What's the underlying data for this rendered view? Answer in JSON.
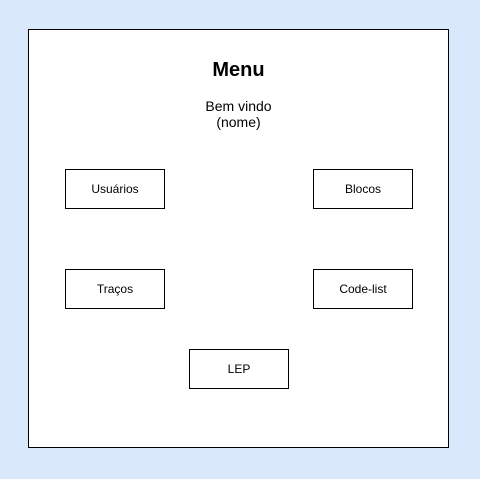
{
  "menu": {
    "title": "Menu",
    "welcome_line1": "Bem vindo",
    "welcome_line2": "(nome)"
  },
  "buttons": {
    "usuarios": "Usuários",
    "blocos": "Blocos",
    "tracos": "Traços",
    "codelist": "Code-list",
    "lep": "LEP"
  },
  "colors": {
    "background": "#dae8fc",
    "panel": "#ffffff",
    "border": "#000000"
  }
}
